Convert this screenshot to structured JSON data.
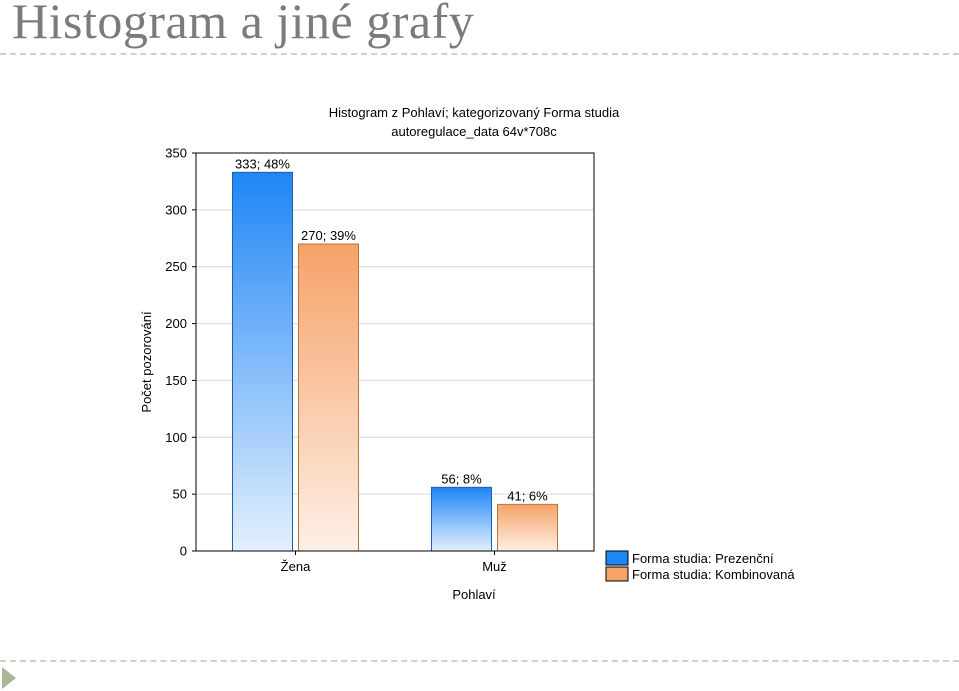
{
  "slide": {
    "title": "Histogram a jiné grafy"
  },
  "chart_data": {
    "type": "bar",
    "title": "Histogram z Pohlaví; kategorizovaný Forma studia",
    "subtitle": "autoregulace_data 64v*708c",
    "xlabel": "Pohlaví",
    "ylabel": "Počet pozorování",
    "categories": [
      "Žena",
      "Muž"
    ],
    "series": [
      {
        "name": "Forma studia: Prezenční",
        "values": [
          333,
          56
        ],
        "labels": [
          "333; 48%",
          "56; 8%"
        ],
        "color": "#1e86f5"
      },
      {
        "name": "Forma studia: Kombinovaná",
        "values": [
          270,
          41
        ],
        "labels": [
          "270; 39%",
          "41; 6%"
        ],
        "color": "#f6a268"
      }
    ],
    "yticks": [
      0,
      50,
      100,
      150,
      200,
      250,
      300,
      350
    ],
    "ylim": [
      0,
      350
    ],
    "grid": true,
    "legend": "bottom-right"
  }
}
